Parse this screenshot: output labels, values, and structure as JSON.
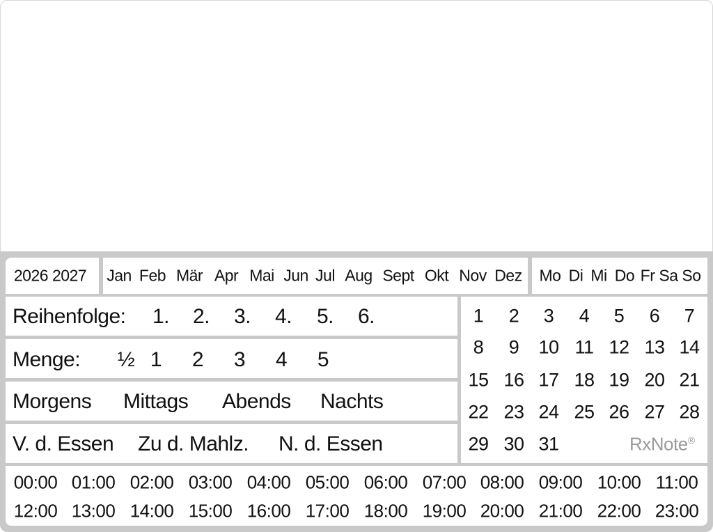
{
  "years": "2026 2027",
  "months": [
    "Jan",
    "Feb",
    "Mär",
    "Apr",
    "Mai",
    "Jun",
    "Jul",
    "Aug",
    "Sept",
    "Okt",
    "Nov",
    "Dez"
  ],
  "weekdays": [
    "Mo",
    "Di",
    "Mi",
    "Do",
    "Fr",
    "Sa",
    "So"
  ],
  "order": {
    "label": "Reihenfolge:",
    "items": [
      "1.",
      "2.",
      "3.",
      "4.",
      "5.",
      "6."
    ]
  },
  "amount": {
    "label": "Menge:",
    "items": [
      "½",
      "1",
      "2",
      "3",
      "4",
      "5"
    ]
  },
  "times_of_day": [
    "Morgens",
    "Mittags",
    "Abends",
    "Nachts"
  ],
  "meal": [
    "V. d. Essen",
    "Zu d. Mahlz.",
    "N. d. Essen"
  ],
  "days": [
    "1",
    "2",
    "3",
    "4",
    "5",
    "6",
    "7",
    "8",
    "9",
    "10",
    "11",
    "12",
    "13",
    "14",
    "15",
    "16",
    "17",
    "18",
    "19",
    "20",
    "21",
    "22",
    "23",
    "24",
    "25",
    "26",
    "27",
    "28",
    "29",
    "30",
    "31"
  ],
  "brand": {
    "name": "RxNote",
    "mark": "®"
  },
  "hours": [
    "00:00",
    "01:00",
    "02:00",
    "03:00",
    "04:00",
    "05:00",
    "06:00",
    "07:00",
    "08:00",
    "09:00",
    "10:00",
    "11:00",
    "12:00",
    "13:00",
    "14:00",
    "15:00",
    "16:00",
    "17:00",
    "18:00",
    "19:00",
    "20:00",
    "21:00",
    "22:00",
    "23:00"
  ]
}
